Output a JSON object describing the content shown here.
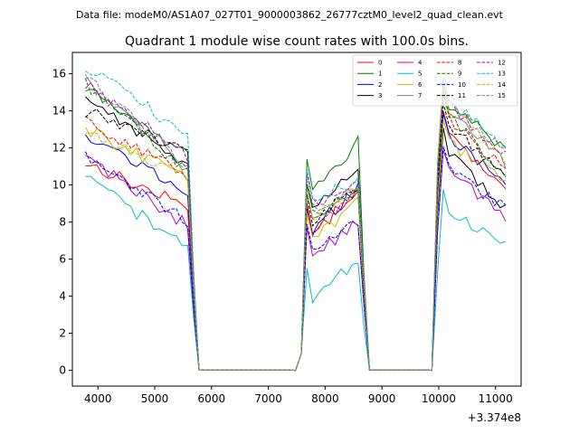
{
  "chart_data": {
    "type": "line",
    "suptitle": "Data file: modeM0/AS1A07_027T01_9000003862_26777cztM0_level2_quad_clean.evt",
    "title": "Quadrant 1 module wise count rates with 100.0s bins.",
    "xlabel": "",
    "ylabel": "",
    "x_offset_label": "+3.374e8",
    "xlim": [
      3550,
      11450
    ],
    "ylim": [
      -0.85,
      17.15
    ],
    "xticks": [
      4000,
      5000,
      6000,
      7000,
      8000,
      9000,
      10000,
      11000
    ],
    "yticks": [
      0,
      2,
      4,
      6,
      8,
      10,
      12,
      14,
      16
    ],
    "grid": false,
    "legend_position": "top-right",
    "legend_columns": 4,
    "segments": [
      {
        "start": 3780,
        "n": 19,
        "step": 100
      },
      {
        "start": 5680,
        "n": 19,
        "step": 100
      },
      {
        "start": 7580,
        "n": 11,
        "step": 100
      },
      {
        "start": 8680,
        "n": 13,
        "step": 100
      },
      {
        "start": 9980,
        "n": 13,
        "step": 100
      }
    ],
    "series": [
      {
        "name": "0",
        "color": "#ff0000",
        "dash": "solid",
        "base": [
          11.2,
          9.2,
          14.0
        ],
        "drop": [
          2.4,
          1.5,
          3.5
        ]
      },
      {
        "name": "1",
        "color": "#008000",
        "dash": "solid",
        "base": [
          15.2,
          11.8,
          15.5
        ],
        "drop": [
          3.6,
          1.3,
          2.5
        ]
      },
      {
        "name": "2",
        "color": "#0000ff",
        "dash": "solid",
        "base": [
          12.8,
          9.6,
          13.8
        ],
        "drop": [
          3.2,
          1.1,
          2.5
        ]
      },
      {
        "name": "3",
        "color": "#000000",
        "dash": "solid",
        "base": [
          14.8,
          10.6,
          13.0
        ],
        "drop": [
          3.8,
          1.0,
          3.2
        ]
      },
      {
        "name": "4",
        "color": "#bf00bf",
        "dash": "solid",
        "base": [
          11.6,
          8.2,
          12.0
        ],
        "drop": [
          3.8,
          0.5,
          2.8
        ]
      },
      {
        "name": "5",
        "color": "#00bfbf",
        "dash": "solid",
        "base": [
          10.4,
          5.9,
          9.8
        ],
        "drop": [
          3.8,
          0.9,
          2.1
        ]
      },
      {
        "name": "6",
        "color": "#bfbf00",
        "dash": "solid",
        "base": [
          13.0,
          9.0,
          13.5
        ],
        "drop": [
          2.6,
          0.8,
          2.2
        ]
      },
      {
        "name": "7",
        "color": "#808080",
        "dash": "solid",
        "base": [
          15.8,
          10.2,
          15.2
        ],
        "drop": [
          5.0,
          0.2,
          3.0
        ]
      },
      {
        "name": "8",
        "color": "#ff0000",
        "dash": "dashed",
        "base": [
          13.5,
          9.5,
          14.8
        ],
        "drop": [
          3.0,
          1.0,
          3.0
        ]
      },
      {
        "name": "9",
        "color": "#008000",
        "dash": "dashed",
        "base": [
          15.5,
          10.4,
          15.0
        ],
        "drop": [
          4.8,
          0.2,
          3.3
        ]
      },
      {
        "name": "10",
        "color": "#0000ff",
        "dash": "dashed",
        "base": [
          11.5,
          8.5,
          12.0
        ],
        "drop": [
          3.5,
          0.3,
          2.3
        ]
      },
      {
        "name": "11",
        "color": "#000000",
        "dash": "dashed",
        "base": [
          14.0,
          10.0,
          14.5
        ],
        "drop": [
          2.2,
          0.8,
          3.0
        ]
      },
      {
        "name": "12",
        "color": "#bf00bf",
        "dash": "dashed",
        "base": [
          15.5,
          11.0,
          15.5
        ],
        "drop": [
          4.0,
          -0.2,
          3.0
        ]
      },
      {
        "name": "13",
        "color": "#00bfbf",
        "dash": "dashed",
        "base": [
          16.4,
          11.2,
          15.8
        ],
        "drop": [
          3.7,
          -0.1,
          2.7
        ]
      },
      {
        "name": "14",
        "color": "#bfbf00",
        "dash": "dashed",
        "base": [
          13.0,
          10.3,
          15.5
        ],
        "drop": [
          2.5,
          0.3,
          3.2
        ]
      },
      {
        "name": "15",
        "color": "#808080",
        "dash": "dashed",
        "base": [
          15.9,
          10.7,
          15.6
        ],
        "drop": [
          4.9,
          0.1,
          2.8
        ]
      }
    ]
  }
}
